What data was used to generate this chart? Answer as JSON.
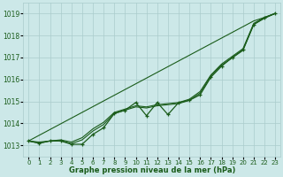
{
  "x": [
    0,
    1,
    2,
    3,
    4,
    5,
    6,
    7,
    8,
    9,
    10,
    11,
    12,
    13,
    14,
    15,
    16,
    17,
    18,
    19,
    20,
    21,
    22,
    23
  ],
  "y_jagged": [
    1013.2,
    1013.1,
    1013.2,
    1013.2,
    1013.05,
    1013.05,
    1013.5,
    1013.8,
    1014.45,
    1014.6,
    1014.95,
    1014.35,
    1014.95,
    1014.4,
    1014.95,
    1015.05,
    1015.3,
    1016.1,
    1016.6,
    1017.0,
    1017.35,
    1018.5,
    1018.8,
    1019.0
  ],
  "y_smooth_upper": [
    1013.2,
    1013.15,
    1013.2,
    1013.25,
    1013.15,
    1013.35,
    1013.75,
    1014.05,
    1014.5,
    1014.65,
    1014.8,
    1014.75,
    1014.85,
    1014.9,
    1014.95,
    1015.1,
    1015.45,
    1016.2,
    1016.7,
    1017.05,
    1017.4,
    1018.55,
    1018.82,
    1019.0
  ],
  "y_smooth_lower": [
    1013.2,
    1013.1,
    1013.2,
    1013.22,
    1013.08,
    1013.25,
    1013.65,
    1013.95,
    1014.45,
    1014.6,
    1014.75,
    1014.7,
    1014.8,
    1014.85,
    1014.9,
    1015.05,
    1015.38,
    1016.15,
    1016.65,
    1016.98,
    1017.32,
    1018.5,
    1018.78,
    1019.0
  ],
  "y_linear": [
    1013.2,
    1013.46,
    1013.72,
    1013.98,
    1014.24,
    1014.5,
    1014.76,
    1015.02,
    1015.28,
    1015.54,
    1015.8,
    1016.06,
    1016.32,
    1016.58,
    1016.84,
    1017.1,
    1017.36,
    1017.62,
    1017.88,
    1018.14,
    1018.4,
    1018.66,
    1018.82,
    1019.0
  ],
  "bg_color": "#cce8e8",
  "grid_color": "#aacccc",
  "line_color": "#1a5c1a",
  "ymin": 1012.5,
  "ymax": 1019.5,
  "xlabel": "Graphe pression niveau de la mer (hPa)"
}
